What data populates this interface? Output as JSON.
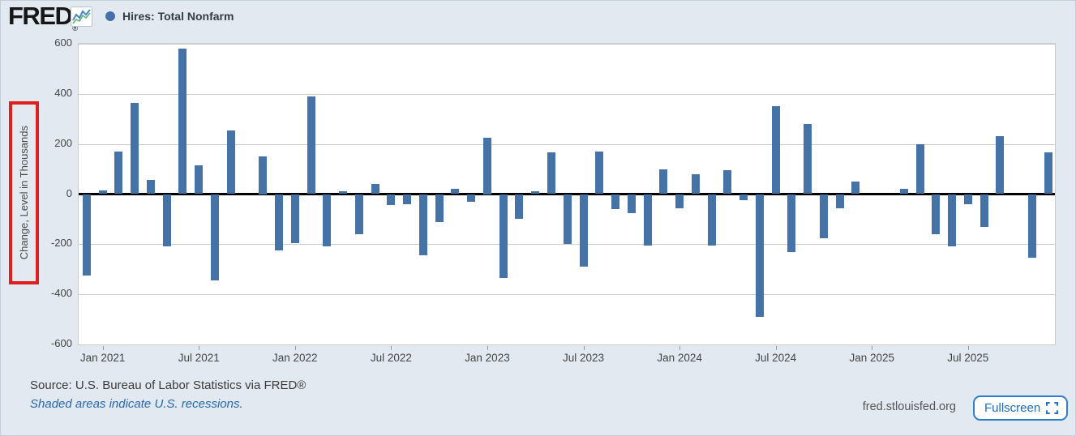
{
  "header": {
    "logo_text": "FRED",
    "registered_mark": "®",
    "legend_label": "Hires: Total Nonfarm",
    "accent_color": "#4572a7"
  },
  "annotation": {
    "highlight_color": "#df1e1e",
    "highlighted_element": "y-axis-title"
  },
  "chart_data": {
    "type": "bar",
    "title": "Hires: Total Nonfarm",
    "ylabel": "Change, Level in Thousands",
    "ylim": [
      -600,
      600
    ],
    "yticks": [
      600,
      400,
      200,
      0,
      -200,
      -400,
      -600
    ],
    "grid": true,
    "bar_color": "#4572a7",
    "zero_line_color": "#000000",
    "xtick_labels": [
      "Jan 2021",
      "Jul 2021",
      "Jan 2022",
      "Jul 2022",
      "Jan 2023",
      "Jul 2023",
      "Jan 2024",
      "Jul 2024",
      "Jan 2025",
      "Jul 2025"
    ],
    "x": [
      "Dec 2020",
      "Jan 2021",
      "Feb 2021",
      "Mar 2021",
      "Apr 2021",
      "May 2021",
      "Jun 2021",
      "Jul 2021",
      "Aug 2021",
      "Sep 2021",
      "Oct 2021",
      "Nov 2021",
      "Dec 2021",
      "Jan 2022",
      "Feb 2022",
      "Mar 2022",
      "Apr 2022",
      "May 2022",
      "Jun 2022",
      "Jul 2022",
      "Aug 2022",
      "Sep 2022",
      "Oct 2022",
      "Nov 2022",
      "Dec 2022",
      "Jan 2023",
      "Feb 2023",
      "Mar 2023",
      "Apr 2023",
      "May 2023",
      "Jun 2023",
      "Jul 2023",
      "Aug 2023",
      "Sep 2023",
      "Oct 2023",
      "Nov 2023",
      "Dec 2023",
      "Jan 2024",
      "Feb 2024",
      "Mar 2024",
      "Apr 2024",
      "May 2024",
      "Jun 2024",
      "Jul 2024",
      "Aug 2024",
      "Sep 2024",
      "Oct 2024",
      "Nov 2024",
      "Dec 2024",
      "Jan 2025",
      "Feb 2025",
      "Mar 2025",
      "Apr 2025",
      "May 2025",
      "Jun 2025",
      "Jul 2025",
      "Aug 2025",
      "Sep 2025",
      "Oct 2025",
      "Nov 2025",
      "Dec 2025"
    ],
    "values": [
      -325,
      15,
      170,
      365,
      55,
      -210,
      580,
      115,
      -345,
      255,
      0,
      150,
      -225,
      -195,
      390,
      -210,
      10,
      -160,
      40,
      -45,
      -40,
      -245,
      -110,
      20,
      -30,
      225,
      -335,
      -100,
      10,
      165,
      -200,
      -290,
      170,
      -60,
      -75,
      -205,
      100,
      -55,
      80,
      -205,
      95,
      -25,
      -490,
      350,
      -230,
      280,
      -175,
      -55,
      50,
      0,
      0,
      20,
      200,
      -160,
      -210,
      -40,
      -130,
      230,
      0,
      -255,
      165
    ]
  },
  "footer": {
    "source": "Source: U.S. Bureau of Labor Statistics via FRED®",
    "recession_note": "Shaded areas indicate U.S. recessions.",
    "site": "fred.stlouisfed.org",
    "fullscreen_label": "Fullscreen"
  }
}
